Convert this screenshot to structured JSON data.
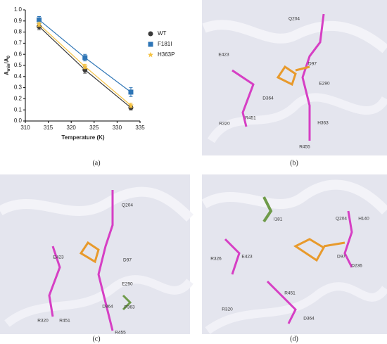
{
  "chart_data": {
    "type": "scatter",
    "xlabel": "Temperature (K)",
    "ylabel": [
      "A",
      "min",
      "/A",
      "0"
    ],
    "x": [
      313,
      323,
      333
    ],
    "series": [
      {
        "name": "WT",
        "color": "#3a3a3a",
        "values": [
          0.85,
          0.46,
          0.12
        ],
        "errors": [
          0.03,
          0.03,
          0.02
        ]
      },
      {
        "name": "F181I",
        "color": "#2e75b6",
        "values": [
          0.91,
          0.57,
          0.26
        ],
        "errors": [
          0.03,
          0.03,
          0.04
        ]
      },
      {
        "name": "H363P",
        "color": "#f5c242",
        "values": [
          0.87,
          0.49,
          0.14
        ],
        "errors": [
          0.02,
          0.02,
          0.02
        ]
      }
    ],
    "xlim": [
      310,
      335
    ],
    "xticks": [
      310,
      315,
      320,
      325,
      330,
      335
    ],
    "ylim": [
      0,
      1
    ],
    "yticks": [
      {
        "value": 0,
        "label": "0.0"
      },
      {
        "value": 0.1,
        "label": "0.1"
      },
      {
        "value": 0.2,
        "label": "0.2"
      },
      {
        "value": 0.3,
        "label": "0.3"
      },
      {
        "value": 0.4,
        "label": "0.4"
      },
      {
        "value": 0.5,
        "label": "0.5"
      },
      {
        "value": 0.6,
        "label": "0.6"
      },
      {
        "value": 0.7,
        "label": "0.7"
      },
      {
        "value": 0.8,
        "label": "0.8"
      },
      {
        "value": 0.9,
        "label": "0.9"
      },
      {
        "value": 1,
        "label": "1.0"
      }
    ],
    "legend": "right"
  },
  "figure": {
    "captions": [
      "(a)",
      "(b)",
      "(c)",
      "(d)"
    ],
    "panels": [
      {
        "labels": [
          "Q204",
          "D97",
          "E423",
          "E290",
          "D364",
          "R451",
          "R320",
          "H363",
          "R455"
        ]
      },
      {
        "labels": [
          "Q204",
          "D97",
          "E423",
          "E290",
          "R320",
          "R451",
          "D364",
          "P363",
          "R455"
        ]
      },
      {
        "labels": [
          "H140",
          "Q204",
          "I181",
          "D97",
          "R326",
          "E423",
          "D236",
          "R320",
          "R451",
          "D364"
        ]
      }
    ]
  }
}
